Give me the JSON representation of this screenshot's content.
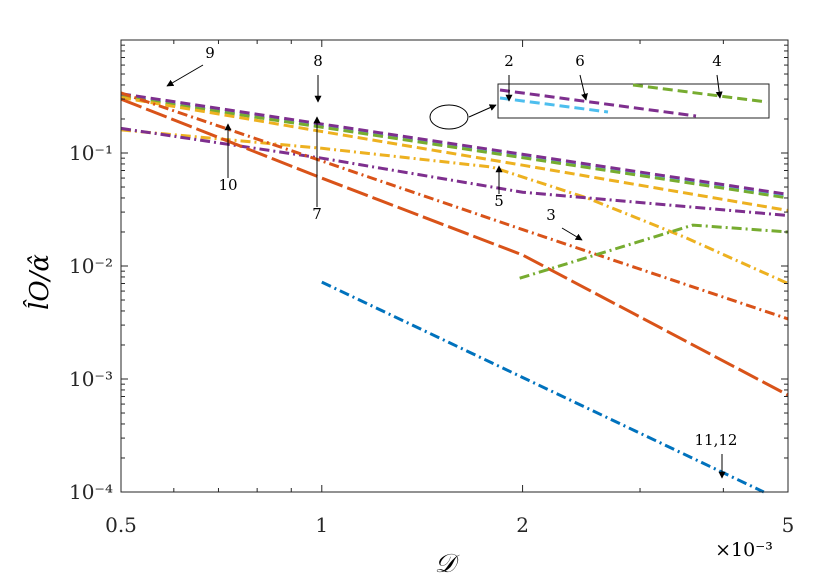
{
  "chart_data": {
    "type": "line",
    "xlabel": "𝒟",
    "xscale_label": "×10⁻³",
    "ylabel": "l̂O/α̂",
    "xscale": "log",
    "yscale": "log",
    "xlim": [
      0.5,
      5
    ],
    "ylim": [
      0.0001,
      1
    ],
    "x_ticks": [
      0.5,
      1,
      2,
      5
    ],
    "x_tick_labels": [
      "0.5",
      "1",
      "2",
      "5"
    ],
    "y_ticks": [
      0.0001,
      0.001,
      0.01,
      0.1
    ],
    "y_tick_labels": [
      "10⁻⁴",
      "10⁻³",
      "10⁻²",
      "10⁻¹"
    ],
    "grid": false,
    "series": [
      {
        "label_number": "2",
        "color": "#4DBEEE",
        "dash": "dash",
        "x": [
          0.5,
          5
        ],
        "y": [
          0.32,
          0.041
        ]
      },
      {
        "label_number": "4",
        "color": "#77AC30",
        "dash": "dash",
        "x": [
          0.5,
          5
        ],
        "y": [
          0.315,
          0.04
        ]
      },
      {
        "label_number": "6",
        "color": "#7E2F8E",
        "dash": "dash",
        "x": [
          0.5,
          5
        ],
        "y": [
          0.335,
          0.043
        ]
      },
      {
        "label_number": "8",
        "color": "#EDB120",
        "dash": "dash",
        "x": [
          0.5,
          1,
          2,
          5
        ],
        "y": [
          0.31,
          0.155,
          0.078,
          0.031
        ]
      },
      {
        "label_number": "7",
        "color": "#EDB120",
        "dash": "dashdot",
        "x": [
          0.5,
          1,
          1.8,
          2.5,
          3.5,
          5
        ],
        "y": [
          0.16,
          0.11,
          0.075,
          0.04,
          0.018,
          0.007
        ]
      },
      {
        "label_number": "5",
        "color": "#7E2F8E",
        "dash": "dashdot",
        "x": [
          0.5,
          1,
          2,
          5
        ],
        "y": [
          0.165,
          0.09,
          0.045,
          0.028
        ]
      },
      {
        "label_number": "9",
        "color": "#D95319",
        "dash": "dashdot",
        "x": [
          0.5,
          1,
          2,
          5
        ],
        "y": [
          0.34,
          0.085,
          0.021,
          0.0034
        ]
      },
      {
        "label_number": "10",
        "color": "#D95319",
        "dash": "longdash",
        "x": [
          0.5,
          1,
          2,
          5
        ],
        "y": [
          0.3,
          0.06,
          0.0125,
          0.00072
        ]
      },
      {
        "label_number": "3",
        "color": "#77AC30",
        "dash": "dashdot",
        "x": [
          1.98,
          3.6,
          5
        ],
        "y": [
          0.0078,
          0.023,
          0.02
        ]
      },
      {
        "label_number": "11,12",
        "color": "#0072BD",
        "dash": "dashdot",
        "x": [
          1,
          4.6
        ],
        "y": [
          0.0072,
          0.0001
        ]
      }
    ],
    "annotations": [
      {
        "text": "9",
        "target": [
          0.6,
          0.2
        ]
      },
      {
        "text": "8",
        "target": [
          1,
          0.18
        ]
      },
      {
        "text": "2",
        "target": [
          2.02,
          0.19
        ]
      },
      {
        "text": "6",
        "target": [
          2.6,
          0.18
        ]
      },
      {
        "text": "4",
        "target": [
          4.1,
          0.19
        ]
      },
      {
        "text": "10",
        "target": [
          0.74,
          0.13
        ]
      },
      {
        "text": "7",
        "target": [
          0.99,
          0.118
        ]
      },
      {
        "text": "5",
        "target": [
          1.9,
          0.046
        ]
      },
      {
        "text": "3",
        "target": [
          2.5,
          0.012
        ]
      },
      {
        "text": "11,12",
        "target": [
          4.1,
          0.00015
        ]
      }
    ],
    "inset": {
      "magnified_region_of_series": [
        "2",
        "4",
        "6"
      ]
    }
  }
}
